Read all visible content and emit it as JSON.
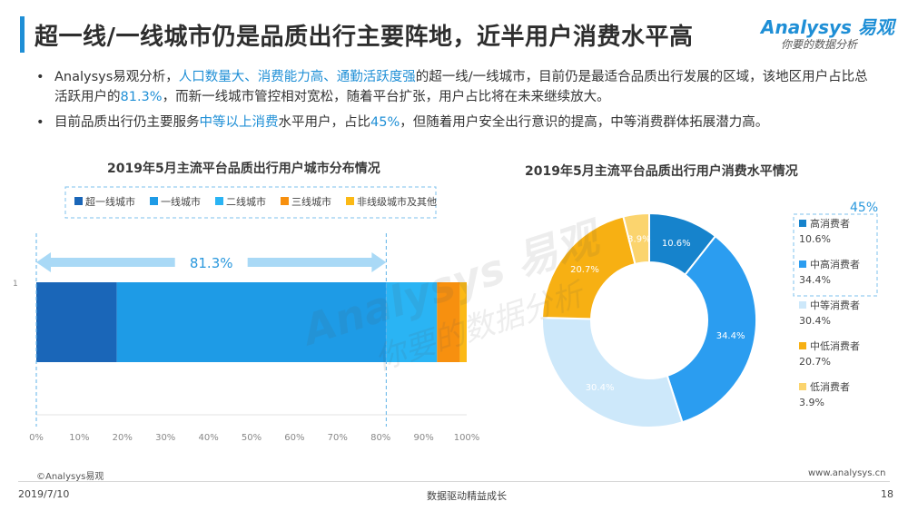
{
  "header": {
    "title": "超一线/一线城市仍是品质出行主要阵地，近半用户消费水平高",
    "logo_brand": "Analysys 易观",
    "logo_tagline": "你要的数据分析"
  },
  "bullets": [
    {
      "parts": [
        {
          "text": "Analysys易观分析，",
          "hl": false
        },
        {
          "text": "人口数量大、消费能力高、通勤活跃度强",
          "hl": true
        },
        {
          "text": "的超一线/一线城市，目前仍是最适合品质出行发展的区域，该地区用户占比总活跃用户的",
          "hl": false
        },
        {
          "text": "81.3%",
          "hl": true
        },
        {
          "text": "，而新一线城市管控相对宽松，随着平台扩张，用户占比将在未来继续放大。",
          "hl": false
        }
      ]
    },
    {
      "parts": [
        {
          "text": "目前品质出行仍主要服务",
          "hl": false
        },
        {
          "text": "中等以上消费",
          "hl": true
        },
        {
          "text": "水平用户，占比",
          "hl": false
        },
        {
          "text": "45%",
          "hl": true
        },
        {
          "text": "，但随着用户安全出行意识的提高，中等消费群体拓展潜力高。",
          "hl": false
        }
      ]
    }
  ],
  "chart_data": [
    {
      "type": "bar",
      "orientation": "horizontal-stacked",
      "title": "2019年5月主流平台品质出行用户城市分布情况",
      "categories": [
        "1"
      ],
      "series": [
        {
          "name": "超一线城市",
          "values": [
            18.7
          ],
          "color": "#1a66b8"
        },
        {
          "name": "一线城市",
          "values": [
            62.6
          ],
          "color": "#1e9be6"
        },
        {
          "name": "二线城市",
          "values": [
            11.8
          ],
          "color": "#2ab4f4"
        },
        {
          "name": "三线城市",
          "values": [
            5.3
          ],
          "color": "#f7900f"
        },
        {
          "name": "非线级城市及其他",
          "values": [
            1.6
          ],
          "color": "#fbb916"
        }
      ],
      "xlim": [
        0,
        100
      ],
      "xticks": [
        "0%",
        "10%",
        "20%",
        "30%",
        "40%",
        "50%",
        "60%",
        "70%",
        "80%",
        "90%",
        "100%"
      ],
      "annotation": "81.3%",
      "legend": "top-left"
    },
    {
      "type": "pie",
      "variant": "donut",
      "title": "2019年5月主流平台品质出行用户消费水平情况",
      "slices": [
        {
          "name": "高消费者",
          "value": 10.6,
          "label": "10.6%",
          "color": "#1683cc"
        },
        {
          "name": "中高消费者",
          "value": 34.4,
          "label": "34.4%",
          "color": "#2b9df0"
        },
        {
          "name": "中等消费者",
          "value": 30.4,
          "label": "30.4%",
          "color": "#cde8fa"
        },
        {
          "name": "中低消费者",
          "value": 20.7,
          "label": "20.7%",
          "color": "#f7b013"
        },
        {
          "name": "低消费者",
          "value": 3.9,
          "label": "3.9%",
          "color": "#fbd46e"
        }
      ],
      "annotation": "45%",
      "legend": "right"
    }
  ],
  "watermark": {
    "brand": "Analysys 易观",
    "tagline": "你要的数据分析"
  },
  "footer": {
    "copyright": "©Analysys易观",
    "url": "www.analysys.cn",
    "date": "2019/7/10",
    "slogan": "数据驱动精益成长",
    "page": "18"
  }
}
